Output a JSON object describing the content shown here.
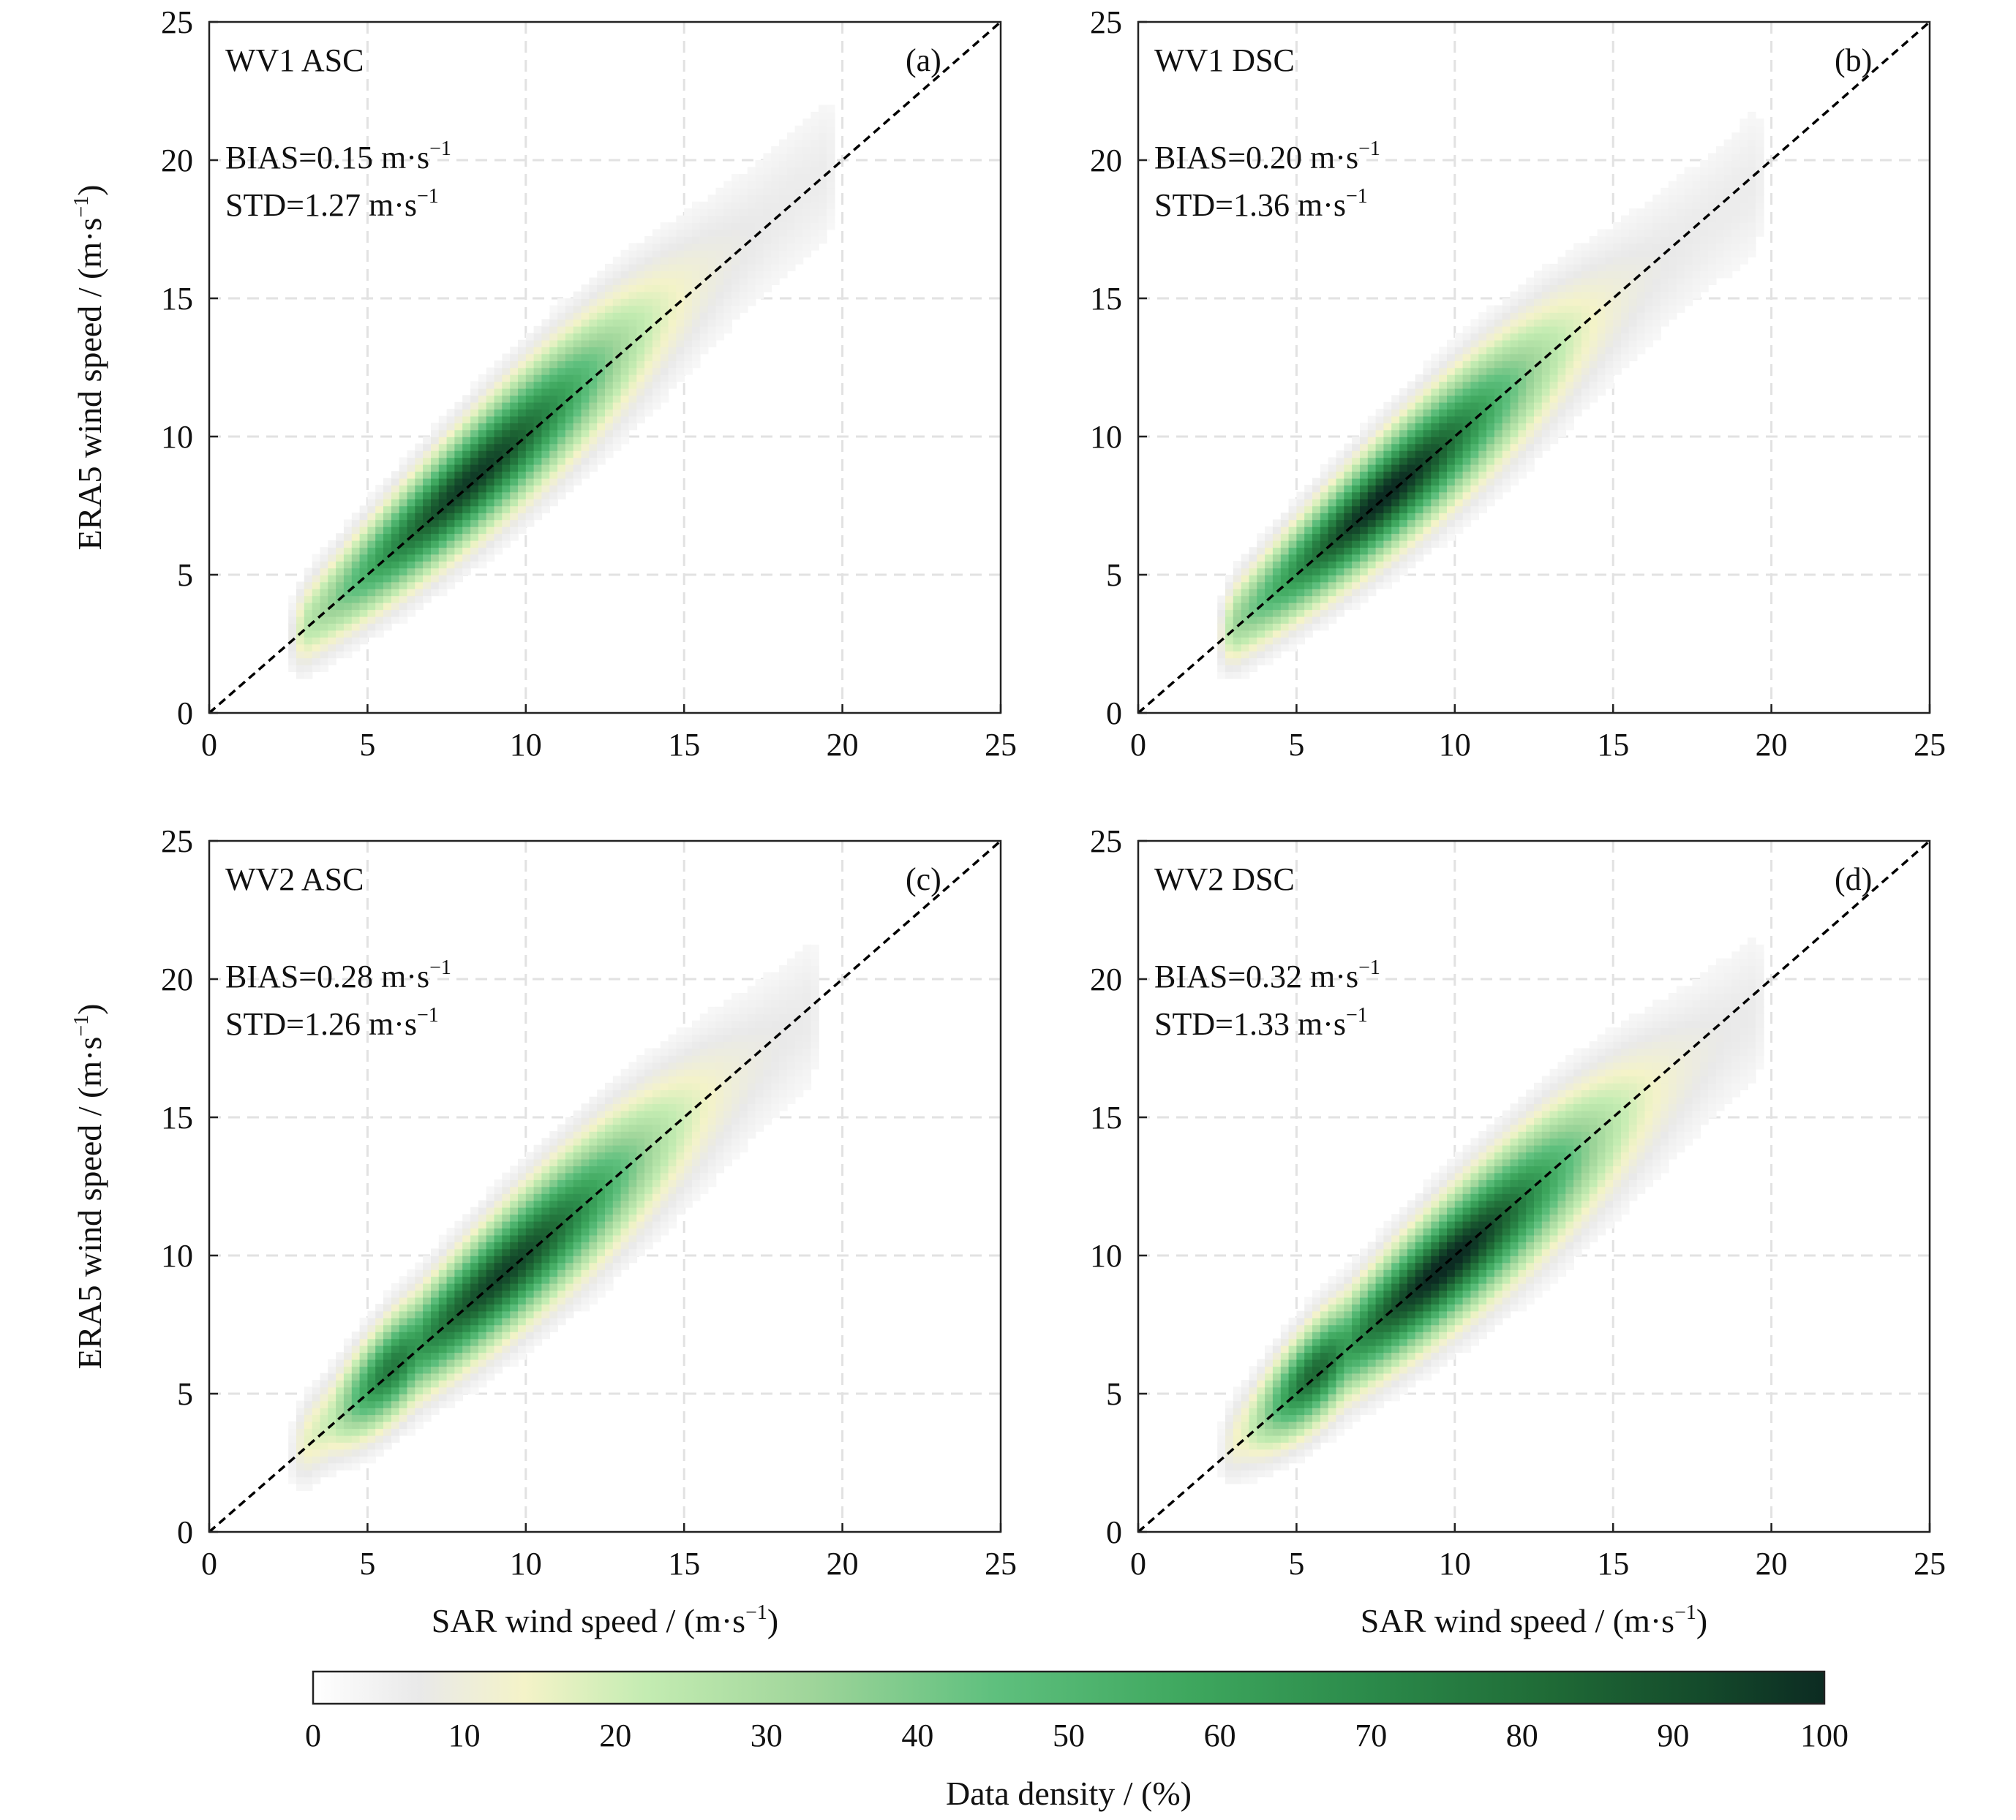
{
  "chart_data": [
    {
      "type": "heatmap",
      "panel": "(a)",
      "title": "WV1 ASC",
      "bias": {
        "label": "BIAS",
        "value": "0.15"
      },
      "std": {
        "label": "STD",
        "value": "1.27"
      },
      "unit_base": "m·s",
      "unit_exp": "−1",
      "xlabel": "SAR wind speed / (m·s",
      "ylabel": "ERA5 wind speed / (m·s",
      "xlim": [
        0,
        25
      ],
      "ylim": [
        0,
        25
      ],
      "xticks": [
        "0",
        "5",
        "10",
        "15",
        "20",
        "25"
      ],
      "yticks": [
        "0",
        "5",
        "10",
        "15",
        "20",
        "25"
      ],
      "reference_line": "y = x",
      "density_band": {
        "slope": 1.0,
        "offset": 0.15,
        "x_range": [
          3,
          19.5
        ],
        "peak_x": 8.3,
        "peak_density": 90,
        "secondary_peak_x": null
      }
    },
    {
      "type": "heatmap",
      "panel": "(b)",
      "title": "WV1 DSC",
      "bias": {
        "label": "BIAS",
        "value": "0.20"
      },
      "std": {
        "label": "STD",
        "value": "1.36"
      },
      "unit_base": "m·s",
      "unit_exp": "−1",
      "xlabel": "SAR wind speed / (m·s",
      "ylabel": "ERA5 wind speed / (m·s",
      "xlim": [
        0,
        25
      ],
      "ylim": [
        0,
        25
      ],
      "xticks": [
        "0",
        "5",
        "10",
        "15",
        "20",
        "25"
      ],
      "yticks": [
        "0",
        "5",
        "10",
        "15",
        "20",
        "25"
      ],
      "reference_line": "y = x",
      "density_band": {
        "slope": 0.97,
        "offset": 0.3,
        "x_range": [
          3,
          19.5
        ],
        "peak_x": 7.8,
        "peak_density": 95,
        "secondary_peak_x": null
      }
    },
    {
      "type": "heatmap",
      "panel": "(c)",
      "title": "WV2 ASC",
      "bias": {
        "label": "BIAS",
        "value": "0.28"
      },
      "std": {
        "label": "STD",
        "value": "1.26"
      },
      "unit_base": "m·s",
      "unit_exp": "−1",
      "xlabel": "SAR wind speed / (m·s",
      "ylabel": "ERA5 wind speed / (m·s",
      "xlim": [
        0,
        25
      ],
      "ylim": [
        0,
        25
      ],
      "xticks": [
        "0",
        "5",
        "10",
        "15",
        "20",
        "25"
      ],
      "yticks": [
        "0",
        "5",
        "10",
        "15",
        "20",
        "25"
      ],
      "reference_line": "y = x",
      "density_band": {
        "slope": 0.97,
        "offset": 0.35,
        "x_range": [
          3,
          19
        ],
        "peak_x": 9.3,
        "peak_density": 88,
        "secondary_peak_x": 5.8
      }
    },
    {
      "type": "heatmap",
      "panel": "(d)",
      "title": "WV2 DSC",
      "bias": {
        "label": "BIAS",
        "value": "0.32"
      },
      "std": {
        "label": "STD",
        "value": "1.33"
      },
      "unit_base": "m·s",
      "unit_exp": "−1",
      "xlabel": "SAR wind speed / (m·s",
      "ylabel": "ERA5 wind speed / (m·s",
      "xlim": [
        0,
        25
      ],
      "ylim": [
        0,
        25
      ],
      "xticks": [
        "0",
        "5",
        "10",
        "15",
        "20",
        "25"
      ],
      "yticks": [
        "0",
        "5",
        "10",
        "15",
        "20",
        "25"
      ],
      "reference_line": "y = x",
      "density_band": {
        "slope": 0.95,
        "offset": 0.45,
        "x_range": [
          3,
          19.5
        ],
        "peak_x": 9.7,
        "peak_density": 96,
        "secondary_peak_x": 5.6
      }
    }
  ],
  "colorbar": {
    "label": "Data density / (%)",
    "min": 0,
    "max": 100,
    "ticks": [
      "0",
      "10",
      "20",
      "30",
      "40",
      "50",
      "60",
      "70",
      "80",
      "90",
      "100"
    ],
    "stops": [
      {
        "v": 0,
        "color": "#ffffff"
      },
      {
        "v": 7,
        "color": "#e9e9e9"
      },
      {
        "v": 14,
        "color": "#f4f3c8"
      },
      {
        "v": 22,
        "color": "#c4ecb2"
      },
      {
        "v": 33,
        "color": "#9fd59a"
      },
      {
        "v": 45,
        "color": "#5fc07e"
      },
      {
        "v": 58,
        "color": "#3ea75e"
      },
      {
        "v": 70,
        "color": "#2b8a4a"
      },
      {
        "v": 82,
        "color": "#1f6a36"
      },
      {
        "v": 92,
        "color": "#144a2b"
      },
      {
        "v": 100,
        "color": "#0c2b22"
      }
    ]
  },
  "colors": {
    "reference_line": "#000000",
    "grid": "#e2e2e2",
    "axes": "#222222"
  }
}
